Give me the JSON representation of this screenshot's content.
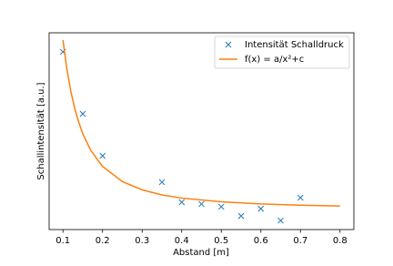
{
  "chart_data": {
    "type": "line",
    "xlabel": "Abstand [m]",
    "ylabel": "Schallintensität [a.u.]",
    "xlim": [
      0.065,
      0.835
    ],
    "ylim": [
      0,
      100
    ],
    "xticks": [
      0.1,
      0.2,
      0.3,
      0.4,
      0.5,
      0.6,
      0.7,
      0.8
    ],
    "legend": "upper right",
    "series": [
      {
        "name": "Intensität Schalldruck",
        "color": "#1f77b4",
        "marker": "x",
        "linestyle": "none",
        "x": [
          0.1,
          0.15,
          0.2,
          0.35,
          0.4,
          0.45,
          0.5,
          0.55,
          0.6,
          0.65,
          0.7
        ],
        "values": [
          90.3,
          58.8,
          37.5,
          24.1,
          13.9,
          13.0,
          11.6,
          6.9,
          10.6,
          4.6,
          16.2
        ]
      },
      {
        "name": "f(x) = a/x²+c",
        "color": "#ff7f0e",
        "marker": "none",
        "linestyle": "solid",
        "x": [
          0.1,
          0.11,
          0.12,
          0.13,
          0.14,
          0.15,
          0.17,
          0.2,
          0.25,
          0.3,
          0.35,
          0.4,
          0.5,
          0.6,
          0.7,
          0.8
        ],
        "values": [
          96.3,
          81.4,
          70.1,
          61.3,
          54.4,
          48.7,
          40.3,
          32.1,
          24.4,
          20.2,
          17.6,
          16.0,
          14.1,
          13.0,
          12.4,
          12.0
        ]
      }
    ]
  }
}
